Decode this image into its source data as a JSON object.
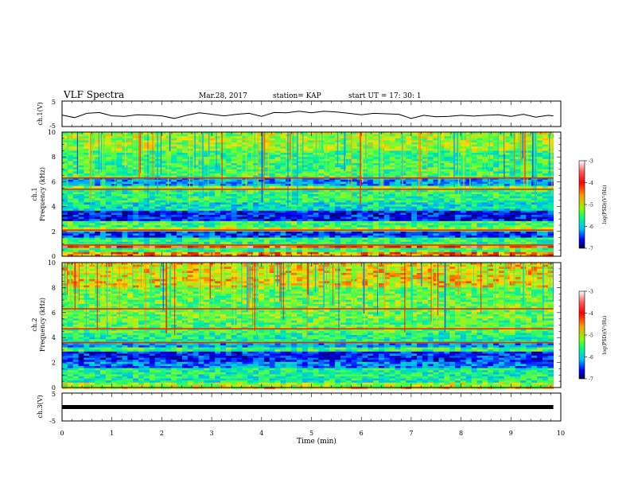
{
  "header": {
    "title": "VLF Spectra",
    "date": "Mar.28, 2017",
    "station": "station= KAP",
    "start": "start  UT =   17: 30: 1"
  },
  "chart_data": [
    {
      "type": "line",
      "panel": "ch1-waveform",
      "ylabel": "ch.1(V)",
      "ylim": [
        -5,
        5
      ],
      "yticks": [
        "5",
        "-5"
      ],
      "x": [
        0,
        0.25,
        0.5,
        0.75,
        1,
        1.25,
        1.5,
        1.75,
        2,
        2.25,
        2.5,
        2.75,
        3,
        3.25,
        3.5,
        3.75,
        4,
        4.25,
        4.5,
        4.75,
        5,
        5.25,
        5.5,
        5.75,
        6,
        6.25,
        6.5,
        6.75,
        7,
        7.25,
        7.5,
        7.75,
        8,
        8.25,
        8.5,
        8.75,
        9,
        9.25,
        9.5,
        9.75,
        9.85
      ],
      "values": [
        -0.5,
        -1.5,
        0.2,
        0.5,
        -0.8,
        -1,
        -0.4,
        -0.5,
        -0.8,
        -1.8,
        -0.6,
        0.4,
        -0.2,
        -0.8,
        -0.2,
        0.2,
        -1,
        0.5,
        0.4,
        1,
        0.4,
        1,
        0.7,
        0.2,
        -0.4,
        0.2,
        0,
        -0.2,
        -1.8,
        -0.6,
        -1.2,
        -1,
        -0.6,
        -0.9,
        -0.6,
        -0.4,
        -1,
        -0.2,
        -1.3,
        -0.6,
        -0.8
      ]
    },
    {
      "type": "heatmap",
      "panel": "ch1-spectrogram",
      "ylabel": "ch.1 Frequency (kHz)",
      "ylim": [
        0,
        10
      ],
      "yticks": [
        "0",
        "2",
        "4",
        "6",
        "8",
        "10"
      ],
      "colorbar": {
        "label": "log(PSD)(V²/Hz)",
        "range": [
          -7,
          -3
        ],
        "ticks": [
          "-3",
          "-4",
          "-5",
          "-6",
          "-7"
        ]
      },
      "bands": [
        {
          "from": 0,
          "to": 0.3,
          "level": -4.0
        },
        {
          "from": 0.3,
          "to": 0.6,
          "level": -5.0
        },
        {
          "from": 0.6,
          "to": 0.9,
          "level": -3.6
        },
        {
          "from": 0.9,
          "to": 1.5,
          "level": -5.1
        },
        {
          "from": 1.5,
          "to": 2.0,
          "level": -6.2
        },
        {
          "from": 2.0,
          "to": 2.3,
          "level": -4.6
        },
        {
          "from": 2.3,
          "to": 2.8,
          "level": -5.0
        },
        {
          "from": 2.8,
          "to": 3.6,
          "level": -6.4
        },
        {
          "from": 3.6,
          "to": 4.4,
          "level": -5.4
        },
        {
          "from": 4.4,
          "to": 5.3,
          "level": -5.1
        },
        {
          "from": 5.3,
          "to": 5.7,
          "level": -4.7
        },
        {
          "from": 5.7,
          "to": 6.3,
          "level": -5.8
        },
        {
          "from": 6.3,
          "to": 8.5,
          "level": -5.0
        },
        {
          "from": 8.5,
          "to": 10,
          "level": -4.6
        }
      ],
      "lines": [
        0.9,
        2.1,
        5.4,
        6.3
      ]
    },
    {
      "type": "heatmap",
      "panel": "ch2-spectrogram",
      "ylabel": "ch.2 Frequency (kHz)",
      "ylim": [
        0,
        10
      ],
      "yticks": [
        "0",
        "2",
        "4",
        "6",
        "8",
        "10"
      ],
      "colorbar": {
        "label": "log(PSD)(V²/Hz)",
        "range": [
          -7,
          -3
        ],
        "ticks": [
          "-3",
          "-4",
          "-5",
          "-6",
          "-7"
        ]
      },
      "bands": [
        {
          "from": 0,
          "to": 0.4,
          "level": -4.6
        },
        {
          "from": 0.4,
          "to": 1.5,
          "level": -5.2
        },
        {
          "from": 1.5,
          "to": 2.1,
          "level": -5.9
        },
        {
          "from": 2.1,
          "to": 2.9,
          "level": -6.3
        },
        {
          "from": 2.9,
          "to": 3.2,
          "level": -5.0
        },
        {
          "from": 3.2,
          "to": 3.6,
          "level": -5.8
        },
        {
          "from": 3.6,
          "to": 4.4,
          "level": -5.2
        },
        {
          "from": 4.4,
          "to": 5.6,
          "level": -4.9
        },
        {
          "from": 5.6,
          "to": 8.0,
          "level": -4.8
        },
        {
          "from": 8.0,
          "to": 10,
          "level": -4.3
        }
      ],
      "lines": [
        3.6,
        4.7,
        6.3
      ]
    },
    {
      "type": "line",
      "panel": "ch3-waveform",
      "ylabel": "ch.3(V)",
      "ylim": [
        -5,
        5
      ],
      "yticks": [
        "5",
        "-5"
      ],
      "x": [
        0,
        9.85
      ],
      "values": [
        0,
        0
      ]
    }
  ],
  "xaxis": {
    "label": "Time (min)",
    "xlim": [
      0,
      10
    ],
    "ticks": [
      "0",
      "1",
      "2",
      "3",
      "4",
      "5",
      "6",
      "7",
      "8",
      "9",
      "10"
    ]
  }
}
